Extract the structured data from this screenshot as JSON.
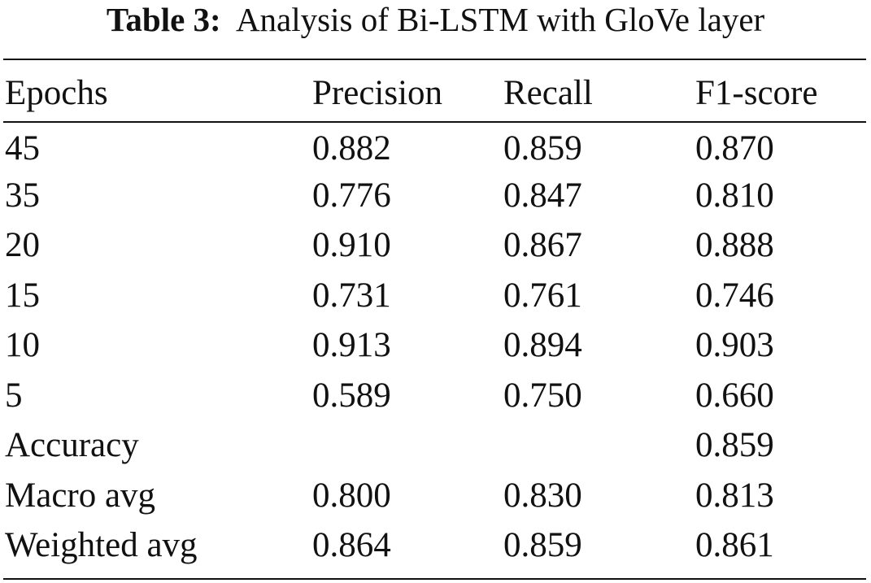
{
  "caption": {
    "label": "Table 3:",
    "text": "Analysis of Bi-LSTM with GloVe layer"
  },
  "table": {
    "headers": [
      "Epochs",
      "Precision",
      "Recall",
      "F1-score"
    ],
    "rows": [
      [
        "45",
        "0.882",
        "0.859",
        "0.870"
      ],
      [
        "35",
        "0.776",
        "0.847",
        "0.810"
      ],
      [
        "20",
        "0.910",
        "0.867",
        "0.888"
      ],
      [
        "15",
        "0.731",
        "0.761",
        "0.746"
      ],
      [
        "10",
        "0.913",
        "0.894",
        "0.903"
      ],
      [
        "5",
        "0.589",
        "0.750",
        "0.660"
      ],
      [
        "Accuracy",
        "",
        "",
        "0.859"
      ],
      [
        "Macro avg",
        "0.800",
        "0.830",
        "0.813"
      ],
      [
        "Weighted avg",
        "0.864",
        "0.859",
        "0.861"
      ]
    ]
  }
}
